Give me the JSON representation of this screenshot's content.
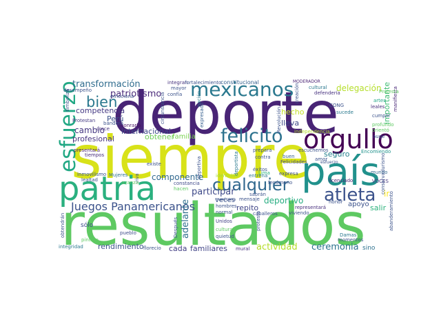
{
  "words": [
    {
      "text": "deporte",
      "color": "#482475"
    },
    {
      "text": "siempre",
      "color": "#d8e219"
    },
    {
      "text": "resultados",
      "color": "#5ec962"
    },
    {
      "text": "país",
      "color": "#21918c"
    },
    {
      "text": "patria",
      "color": "#2ab07f"
    },
    {
      "text": "orgullo",
      "color": "#440154"
    },
    {
      "text": "esfuerzo",
      "color": "#22a884"
    },
    {
      "text": "mexicanos",
      "color": "#2a788e"
    },
    {
      "text": "felicito",
      "color": "#2c728e"
    },
    {
      "text": "cualquier",
      "color": "#31688e"
    },
    {
      "text": "atleta",
      "color": "#3b528b"
    },
    {
      "text": "bien",
      "color": "#2a788e"
    },
    {
      "text": "Juegos Panamericanos",
      "color": "#3b528b"
    },
    {
      "text": "transformación",
      "color": "#2f6c8e"
    },
    {
      "text": "patriotismo",
      "color": "#482878"
    },
    {
      "text": "competencia",
      "color": "#443983"
    },
    {
      "text": "cambio",
      "color": "#453781"
    },
    {
      "text": "profesional",
      "color": "#46337f"
    },
    {
      "text": "Perú",
      "color": "#3b528b"
    },
    {
      "text": "internacional",
      "color": "#3e4989"
    },
    {
      "text": "obtener",
      "color": "#6ece58"
    },
    {
      "text": "familia",
      "color": "#7ad151"
    },
    {
      "text": "componente",
      "color": "#31688e"
    },
    {
      "text": "participar",
      "color": "#3e4989"
    },
    {
      "text": "adelante",
      "color": "#2e6f8e"
    },
    {
      "text": "rendimiento",
      "color": "#3b528b"
    },
    {
      "text": "cada",
      "color": "#433e85"
    },
    {
      "text": "familiares",
      "color": "#414487"
    },
    {
      "text": "actividad",
      "color": "#b5de2b"
    },
    {
      "text": "ceremonia",
      "color": "#2c728e"
    },
    {
      "text": "delegación",
      "color": "#b5de2b"
    },
    {
      "text": "importante",
      "color": "#3fbc73"
    },
    {
      "text": "seguro",
      "color": "#26828e"
    },
    {
      "text": "deportivo",
      "color": "#27ad81"
    },
    {
      "text": "repito",
      "color": "#404688"
    },
    {
      "text": "apoyo",
      "color": "#3b528b"
    },
    {
      "text": "salir",
      "color": "#2db27d"
    },
    {
      "text": "ir",
      "color": "#fde725"
    },
    {
      "text": "sólo",
      "color": "#3e4a89"
    },
    {
      "text": "hecho",
      "color": "#c2df23"
    },
    {
      "text": "lleva",
      "color": "#3e4989"
    },
    {
      "text": "sino",
      "color": "#2d708e"
    },
    {
      "text": "veces",
      "color": "#3b528b"
    },
    {
      "text": "constitucional",
      "color": "#35608d"
    },
    {
      "text": "integran",
      "color": "#46327e"
    },
    {
      "text": "fortalecimiento",
      "color": "#3b528b"
    },
    {
      "text": "MODERADOR",
      "color": "#482173"
    },
    {
      "text": "cultural",
      "color": "#2a788e"
    },
    {
      "text": "defendería",
      "color": "#46307e"
    },
    {
      "text": "manifiesta",
      "color": "#482677"
    },
    {
      "text": "leales",
      "color": "#472d7b"
    },
    {
      "text": "cumplir",
      "color": "#3b528b"
    },
    {
      "text": "artes",
      "color": "#21a585"
    },
    {
      "text": "sucede",
      "color": "#29798e"
    },
    {
      "text": "profundo",
      "color": "#5ec962"
    },
    {
      "text": "auge",
      "color": "#3b528b"
    },
    {
      "text": "Encomiendo",
      "color": "#20928c"
    },
    {
      "text": "independencia",
      "color": "#b5de2b"
    },
    {
      "text": "Revolución",
      "color": "#3b528b"
    },
    {
      "text": "expresado",
      "color": "#355e8d"
    },
    {
      "text": "nación",
      "color": "#2a788e"
    },
    {
      "text": "circunstancia",
      "color": "#3b528b"
    },
    {
      "text": "honrarla",
      "color": "#471063"
    },
    {
      "text": "bandera",
      "color": "#3b528b"
    },
    {
      "text": "crece",
      "color": "#46337f"
    },
    {
      "text": "Protestan",
      "color": "#443a83"
    },
    {
      "text": "tiempos",
      "color": "#472c7a"
    },
    {
      "text": "presentará",
      "color": "#482071"
    },
    {
      "text": "inmovilismo",
      "color": "#3a548c"
    },
    {
      "text": "Mujeres",
      "color": "#2c718e"
    },
    {
      "text": "lealtad",
      "color": "#3b528b"
    },
    {
      "text": "existe",
      "color": "#3b528b"
    },
    {
      "text": "constancia",
      "color": "#3f4889"
    },
    {
      "text": "identidad",
      "color": "#a5db36"
    },
    {
      "text": "hombres",
      "color": "#3b528b"
    },
    {
      "text": "Unidos",
      "color": "#424086"
    },
    {
      "text": "cultura",
      "color": "#5ec962"
    },
    {
      "text": "quietud",
      "color": "#3b528b"
    },
    {
      "text": "mural",
      "color": "#46307e"
    },
    {
      "text": "florecio",
      "color": "#3b528b"
    },
    {
      "text": "pueblo",
      "color": "#3e4c8a"
    },
    {
      "text": "pintura",
      "color": "#5ec962"
    },
    {
      "text": "integridad",
      "color": "#2a788e"
    },
    {
      "text": "obtendrán",
      "color": "#3b528b"
    },
    {
      "text": "Felicidades",
      "color": "#3f4788"
    },
    {
      "text": "buen",
      "color": "#34618d"
    },
    {
      "text": "éxitos",
      "color": "#3b528b"
    },
    {
      "text": "entrena",
      "color": "#2c738e"
    },
    {
      "text": "expresa",
      "color": "#3d4e8a"
    },
    {
      "text": "sabrán",
      "color": "#3b528b"
    },
    {
      "text": "mensaje",
      "color": "#3b528b"
    },
    {
      "text": "normal",
      "color": "#3b528b"
    },
    {
      "text": "caballeros",
      "color": "#3b528b"
    },
    {
      "text": "representará",
      "color": "#472e7c"
    },
    {
      "text": "viviendo",
      "color": "#3b528b"
    },
    {
      "text": "honor",
      "color": "#3b528b"
    },
    {
      "text": "momentos",
      "color": "#3b528b"
    },
    {
      "text": "Damas",
      "color": "#2a788e"
    },
    {
      "text": "licenciado",
      "color": "#482475"
    },
    {
      "text": "VOCES",
      "color": "#453882"
    },
    {
      "text": "mundo",
      "color": "#31688e"
    },
    {
      "text": "creación",
      "color": "#3b528b"
    },
    {
      "text": "amor",
      "color": "#3b528b"
    },
    {
      "text": "esfuerzo",
      "color": "#3b528b"
    },
    {
      "text": "escuchemos",
      "color": "#3b528b"
    },
    {
      "text": "prepara",
      "color": "#3b528b"
    },
    {
      "text": "fenómeno",
      "color": "#3b528b"
    },
    {
      "text": "deportista",
      "color": "#2a788e"
    },
    {
      "text": "deportiva",
      "color": "#3b528b"
    },
    {
      "text": "viva",
      "color": "#3b528b"
    },
    {
      "text": "Lima",
      "color": "#2ab07f"
    },
    {
      "text": "contra",
      "color": "#3b528b"
    },
    {
      "text": "confía",
      "color": "#3b528b"
    },
    {
      "text": "mayor",
      "color": "#3b528b"
    },
    {
      "text": "desempeño",
      "color": "#3b528b"
    },
    {
      "text": "simboliza",
      "color": "#3b528b"
    },
    {
      "text": "emociona",
      "color": "#3b528b"
    },
    {
      "text": "avanza",
      "color": "#5ec962"
    },
    {
      "text": "hacen",
      "color": "#5ec962"
    },
    {
      "text": "Después",
      "color": "#3b528b"
    },
    {
      "text": "protesta",
      "color": "#3b528b"
    },
    {
      "text": "Protesta",
      "color": "#5ec962"
    },
    {
      "text": "abanderamiento",
      "color": "#3b528b"
    },
    {
      "text": "conservadurismo",
      "color": "#3b528b"
    },
    {
      "text": "CONG",
      "color": "#3b528b"
    },
    {
      "text": "orientó",
      "color": "#5ec962"
    },
    {
      "text": "mexicana",
      "color": "#3b528b"
    }
  ]
}
